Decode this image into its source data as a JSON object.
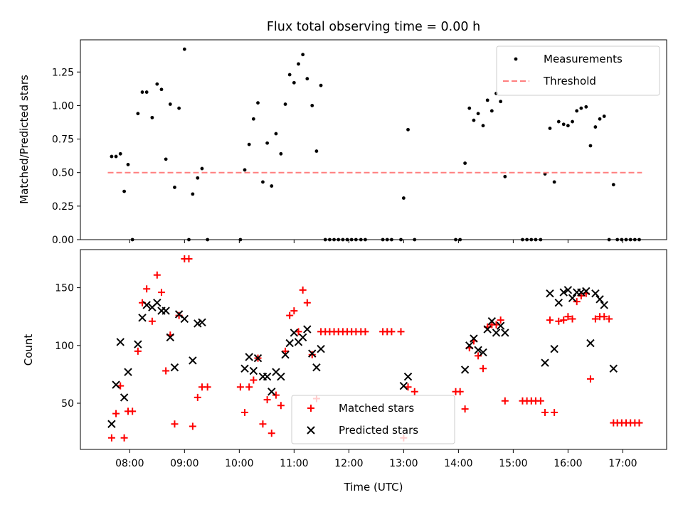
{
  "chart_data": [
    {
      "type": "scatter",
      "title": "Flux total observing time = 0.00 h",
      "xlabel": "",
      "ylabel": "Matched/Predicted stars",
      "x_unit": "time (UTC, hours)",
      "xlim": [
        7.1,
        17.8
      ],
      "ylim": [
        0,
        1.49
      ],
      "yticks": [
        "0.00",
        "0.25",
        "0.50",
        "0.75",
        "1.00",
        "1.25"
      ],
      "ytick_values": [
        0,
        0.25,
        0.5,
        0.75,
        1.0,
        1.25
      ],
      "legend_position": "top-right",
      "series": [
        {
          "name": "Measurements",
          "marker": "dot",
          "color": "#000000",
          "points": [
            [
              7.67,
              0.62
            ],
            [
              7.75,
              0.62
            ],
            [
              7.83,
              0.64
            ],
            [
              7.9,
              0.36
            ],
            [
              7.97,
              0.56
            ],
            [
              8.05,
              0.0
            ],
            [
              8.15,
              0.94
            ],
            [
              8.23,
              1.1
            ],
            [
              8.31,
              1.1
            ],
            [
              8.41,
              0.91
            ],
            [
              8.5,
              1.16
            ],
            [
              8.58,
              1.12
            ],
            [
              8.66,
              0.6
            ],
            [
              8.74,
              1.01
            ],
            [
              8.82,
              0.39
            ],
            [
              8.9,
              0.98
            ],
            [
              9.0,
              1.42
            ],
            [
              9.08,
              0.0
            ],
            [
              9.15,
              0.34
            ],
            [
              9.24,
              0.46
            ],
            [
              9.32,
              0.53
            ],
            [
              9.42,
              0.0
            ],
            [
              10.02,
              0.0
            ],
            [
              10.1,
              0.52
            ],
            [
              10.18,
              0.71
            ],
            [
              10.26,
              0.9
            ],
            [
              10.34,
              1.02
            ],
            [
              10.43,
              0.43
            ],
            [
              10.51,
              0.72
            ],
            [
              10.59,
              0.4
            ],
            [
              10.67,
              0.79
            ],
            [
              10.76,
              0.64
            ],
            [
              10.84,
              1.01
            ],
            [
              10.92,
              1.23
            ],
            [
              11.0,
              1.17
            ],
            [
              11.08,
              1.31
            ],
            [
              11.16,
              1.38
            ],
            [
              11.24,
              1.2
            ],
            [
              11.33,
              1.0
            ],
            [
              11.41,
              0.66
            ],
            [
              11.49,
              1.15
            ],
            [
              11.57,
              0.0
            ],
            [
              11.65,
              0.0
            ],
            [
              11.73,
              0.0
            ],
            [
              11.81,
              0.0
            ],
            [
              11.89,
              0.0
            ],
            [
              11.97,
              0.0
            ],
            [
              12.05,
              0.0
            ],
            [
              12.13,
              0.0
            ],
            [
              12.22,
              0.0
            ],
            [
              12.3,
              0.0
            ],
            [
              12.62,
              0.0
            ],
            [
              12.7,
              0.0
            ],
            [
              12.78,
              0.0
            ],
            [
              12.95,
              0.0
            ],
            [
              13.0,
              0.31
            ],
            [
              13.08,
              0.82
            ],
            [
              13.2,
              0.0
            ],
            [
              13.95,
              0.0
            ],
            [
              14.03,
              0.0
            ],
            [
              14.12,
              0.57
            ],
            [
              14.2,
              0.98
            ],
            [
              14.28,
              0.89
            ],
            [
              14.36,
              0.94
            ],
            [
              14.45,
              0.85
            ],
            [
              14.53,
              1.04
            ],
            [
              14.61,
              0.96
            ],
            [
              14.69,
              1.09
            ],
            [
              14.77,
              1.03
            ],
            [
              14.85,
              0.47
            ],
            [
              15.17,
              0.0
            ],
            [
              15.25,
              0.0
            ],
            [
              15.33,
              0.0
            ],
            [
              15.41,
              0.0
            ],
            [
              15.5,
              0.0
            ],
            [
              15.58,
              0.49
            ],
            [
              15.67,
              0.83
            ],
            [
              15.75,
              0.43
            ],
            [
              15.83,
              0.88
            ],
            [
              15.92,
              0.86
            ],
            [
              16.0,
              0.85
            ],
            [
              16.08,
              0.88
            ],
            [
              16.16,
              0.96
            ],
            [
              16.24,
              0.98
            ],
            [
              16.33,
              0.99
            ],
            [
              16.41,
              0.7
            ],
            [
              16.5,
              0.84
            ],
            [
              16.58,
              0.9
            ],
            [
              16.66,
              0.92
            ],
            [
              16.75,
              0.0
            ],
            [
              16.83,
              0.41
            ],
            [
              16.9,
              0.0
            ],
            [
              16.98,
              0.0
            ],
            [
              17.06,
              0.0
            ],
            [
              17.14,
              0.0
            ],
            [
              17.22,
              0.0
            ],
            [
              17.3,
              0.0
            ]
          ]
        },
        {
          "name": "Threshold",
          "type": "line",
          "style": "dashed",
          "color": "#ff7f7f",
          "points": [
            [
              7.6,
              0.5
            ],
            [
              17.35,
              0.5
            ]
          ]
        }
      ]
    },
    {
      "type": "scatter",
      "title": "",
      "xlabel": "Time (UTC)",
      "ylabel": "Count",
      "x_unit": "time (UTC, hours)",
      "xlim": [
        7.1,
        17.8
      ],
      "ylim": [
        10,
        183
      ],
      "xticks": [
        "08:00",
        "09:00",
        "10:00",
        "11:00",
        "12:00",
        "13:00",
        "14:00",
        "15:00",
        "16:00",
        "17:00"
      ],
      "xtick_values": [
        8,
        9,
        10,
        11,
        12,
        13,
        14,
        15,
        16,
        17
      ],
      "yticks": [
        "50",
        "100",
        "150"
      ],
      "ytick_values": [
        50,
        100,
        150
      ],
      "legend_position": "bottom-center",
      "series": [
        {
          "name": "Matched stars",
          "marker": "plus",
          "color": "#ff0000",
          "points": [
            [
              7.67,
              20
            ],
            [
              7.75,
              41
            ],
            [
              7.83,
              65
            ],
            [
              7.9,
              20
            ],
            [
              7.97,
              43
            ],
            [
              8.05,
              43
            ],
            [
              8.15,
              95
            ],
            [
              8.23,
              137
            ],
            [
              8.31,
              149
            ],
            [
              8.41,
              121
            ],
            [
              8.5,
              161
            ],
            [
              8.58,
              146
            ],
            [
              8.66,
              78
            ],
            [
              8.74,
              109
            ],
            [
              8.82,
              32
            ],
            [
              8.9,
              126
            ],
            [
              9.0,
              175
            ],
            [
              9.08,
              175
            ],
            [
              9.15,
              30
            ],
            [
              9.24,
              55
            ],
            [
              9.32,
              64
            ],
            [
              9.42,
              64
            ],
            [
              10.02,
              64
            ],
            [
              10.1,
              42
            ],
            [
              10.18,
              64
            ],
            [
              10.26,
              70
            ],
            [
              10.34,
              89
            ],
            [
              10.43,
              32
            ],
            [
              10.51,
              53
            ],
            [
              10.59,
              24
            ],
            [
              10.67,
              57
            ],
            [
              10.76,
              48
            ],
            [
              10.84,
              95
            ],
            [
              10.92,
              126
            ],
            [
              11.0,
              130
            ],
            [
              11.08,
              112
            ],
            [
              11.16,
              148
            ],
            [
              11.24,
              137
            ],
            [
              11.33,
              92
            ],
            [
              11.41,
              54
            ],
            [
              11.49,
              112
            ],
            [
              11.57,
              112
            ],
            [
              11.65,
              112
            ],
            [
              11.73,
              112
            ],
            [
              11.81,
              112
            ],
            [
              11.89,
              112
            ],
            [
              11.97,
              112
            ],
            [
              12.05,
              112
            ],
            [
              12.13,
              112
            ],
            [
              12.22,
              112
            ],
            [
              12.3,
              112
            ],
            [
              12.62,
              112
            ],
            [
              12.7,
              112
            ],
            [
              12.78,
              112
            ],
            [
              12.95,
              112
            ],
            [
              13.0,
              20
            ],
            [
              13.08,
              64
            ],
            [
              13.2,
              60
            ],
            [
              13.95,
              60
            ],
            [
              14.03,
              60
            ],
            [
              14.12,
              45
            ],
            [
              14.2,
              98
            ],
            [
              14.28,
              104
            ],
            [
              14.36,
              91
            ],
            [
              14.45,
              80
            ],
            [
              14.53,
              116
            ],
            [
              14.61,
              118
            ],
            [
              14.69,
              118
            ],
            [
              14.77,
              122
            ],
            [
              14.85,
              52
            ],
            [
              15.17,
              52
            ],
            [
              15.25,
              52
            ],
            [
              15.33,
              52
            ],
            [
              15.41,
              52
            ],
            [
              15.5,
              52
            ],
            [
              15.58,
              42
            ],
            [
              15.67,
              122
            ],
            [
              15.75,
              42
            ],
            [
              15.83,
              121
            ],
            [
              15.92,
              122
            ],
            [
              16.0,
              125
            ],
            [
              16.08,
              123
            ],
            [
              16.16,
              138
            ],
            [
              16.24,
              143
            ],
            [
              16.33,
              145
            ],
            [
              16.41,
              71
            ],
            [
              16.5,
              123
            ],
            [
              16.58,
              125
            ],
            [
              16.66,
              125
            ],
            [
              16.75,
              123
            ],
            [
              16.83,
              33
            ],
            [
              16.9,
              33
            ],
            [
              16.98,
              33
            ],
            [
              17.06,
              33
            ],
            [
              17.14,
              33
            ],
            [
              17.22,
              33
            ],
            [
              17.3,
              33
            ]
          ]
        },
        {
          "name": "Predicted stars",
          "marker": "x",
          "color": "#000000",
          "points": [
            [
              7.67,
              32
            ],
            [
              7.75,
              66
            ],
            [
              7.83,
              103
            ],
            [
              7.9,
              55
            ],
            [
              7.97,
              77
            ],
            [
              8.15,
              101
            ],
            [
              8.23,
              124
            ],
            [
              8.31,
              135
            ],
            [
              8.41,
              133
            ],
            [
              8.5,
              137
            ],
            [
              8.58,
              130
            ],
            [
              8.66,
              130
            ],
            [
              8.74,
              107
            ],
            [
              8.82,
              81
            ],
            [
              8.9,
              127
            ],
            [
              9.0,
              123
            ],
            [
              9.15,
              87
            ],
            [
              9.24,
              119
            ],
            [
              9.32,
              120
            ],
            [
              10.1,
              80
            ],
            [
              10.18,
              90
            ],
            [
              10.26,
              78
            ],
            [
              10.34,
              89
            ],
            [
              10.43,
              73
            ],
            [
              10.51,
              73
            ],
            [
              10.59,
              60
            ],
            [
              10.67,
              77
            ],
            [
              10.76,
              73
            ],
            [
              10.84,
              92
            ],
            [
              10.92,
              102
            ],
            [
              11.0,
              111
            ],
            [
              11.08,
              103
            ],
            [
              11.16,
              107
            ],
            [
              11.24,
              114
            ],
            [
              11.33,
              93
            ],
            [
              11.41,
              81
            ],
            [
              11.49,
              97
            ],
            [
              13.0,
              65
            ],
            [
              13.08,
              73
            ],
            [
              14.12,
              79
            ],
            [
              14.2,
              100
            ],
            [
              14.28,
              106
            ],
            [
              14.36,
              96
            ],
            [
              14.45,
              94
            ],
            [
              14.53,
              114
            ],
            [
              14.61,
              121
            ],
            [
              14.69,
              111
            ],
            [
              14.77,
              117
            ],
            [
              14.85,
              111
            ],
            [
              15.58,
              85
            ],
            [
              15.67,
              145
            ],
            [
              15.75,
              97
            ],
            [
              15.83,
              137
            ],
            [
              15.92,
              146
            ],
            [
              16.0,
              148
            ],
            [
              16.08,
              141
            ],
            [
              16.16,
              146
            ],
            [
              16.24,
              146
            ],
            [
              16.33,
              147
            ],
            [
              16.41,
              102
            ],
            [
              16.5,
              145
            ],
            [
              16.58,
              140
            ],
            [
              16.66,
              135
            ],
            [
              16.83,
              80
            ]
          ]
        }
      ]
    }
  ]
}
